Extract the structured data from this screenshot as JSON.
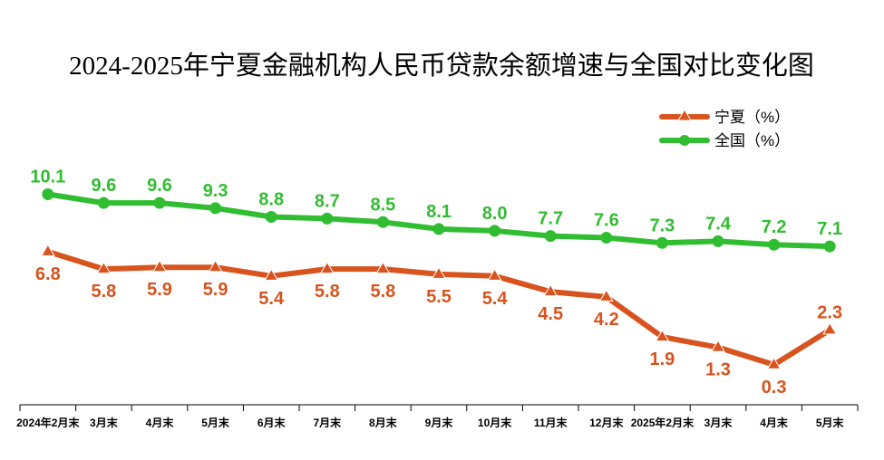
{
  "chart_data": {
    "type": "line",
    "title": "2024-2025年宁夏金融机构人民币贷款余额增速与全国对比变化图",
    "categories": [
      "2024年2月末",
      "3月末",
      "4月末",
      "5月末",
      "6月末",
      "7月末",
      "8月末",
      "9月末",
      "10月末",
      "11月末",
      "12月末",
      "2025年2月末",
      "3月末",
      "4月末",
      "5月末"
    ],
    "series": [
      {
        "name": "宁夏（%）",
        "color": "#d8531d",
        "marker": "triangle",
        "values": [
          6.8,
          5.8,
          5.9,
          5.9,
          5.4,
          5.8,
          5.8,
          5.5,
          5.4,
          4.5,
          4.2,
          1.9,
          1.3,
          0.3,
          2.3
        ],
        "labels": [
          "6.8",
          "5.8",
          "5.9",
          "5.9",
          "5.4",
          "5.8",
          "5.8",
          "5.5",
          "5.4",
          "4.5",
          "4.2",
          "1.9",
          "1.3",
          "0.3",
          "2.3"
        ]
      },
      {
        "name": "全国（%）",
        "color": "#31bd31",
        "marker": "circle",
        "values": [
          10.1,
          9.6,
          9.6,
          9.3,
          8.8,
          8.7,
          8.5,
          8.1,
          8.0,
          7.7,
          7.6,
          7.3,
          7.4,
          7.2,
          7.1
        ],
        "labels": [
          "10.1",
          "9.6",
          "9.6",
          "9.3",
          "8.8",
          "8.7",
          "8.5",
          "8.1",
          "8.0",
          "7.7",
          "7.6",
          "7.3",
          "7.4",
          "7.2",
          "7.1"
        ]
      }
    ],
    "ylim": [
      -2,
      12
    ],
    "grid": false,
    "legend_position": "top-right"
  }
}
